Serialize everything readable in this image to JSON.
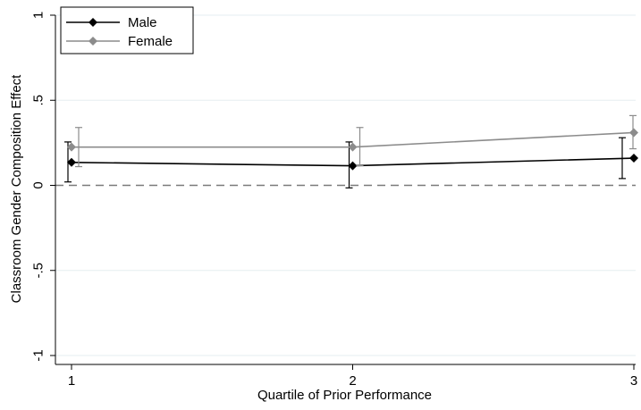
{
  "chart_data": {
    "type": "line",
    "xlabel": "Quartile of Prior Performance",
    "ylabel": "Classroom Gender Composition Effect",
    "x": [
      1,
      2,
      3
    ],
    "x_ticks": [
      "1",
      "2",
      "3"
    ],
    "xlim": [
      1,
      3
    ],
    "ylim": [
      -1,
      1
    ],
    "y_ticks": [
      {
        "value": -1,
        "label": "-1"
      },
      {
        "value": -0.5,
        "label": "-.5"
      },
      {
        "value": 0,
        "label": "0"
      },
      {
        "value": 0.5,
        "label": ".5"
      },
      {
        "value": 1,
        "label": "1"
      }
    ],
    "grid": true,
    "reference_line": 0,
    "legend_position": "top-left",
    "series": [
      {
        "name": "Male",
        "color": "#000000",
        "values": [
          0.135,
          0.115,
          0.16
        ],
        "ci_low": [
          0.02,
          -0.015,
          0.04
        ],
        "ci_high": [
          0.255,
          0.255,
          0.28
        ]
      },
      {
        "name": "Female",
        "color": "#8c8c8c",
        "values": [
          0.225,
          0.225,
          0.31
        ],
        "ci_low": [
          0.11,
          0.115,
          0.215
        ],
        "ci_high": [
          0.34,
          0.34,
          0.41
        ]
      }
    ]
  }
}
